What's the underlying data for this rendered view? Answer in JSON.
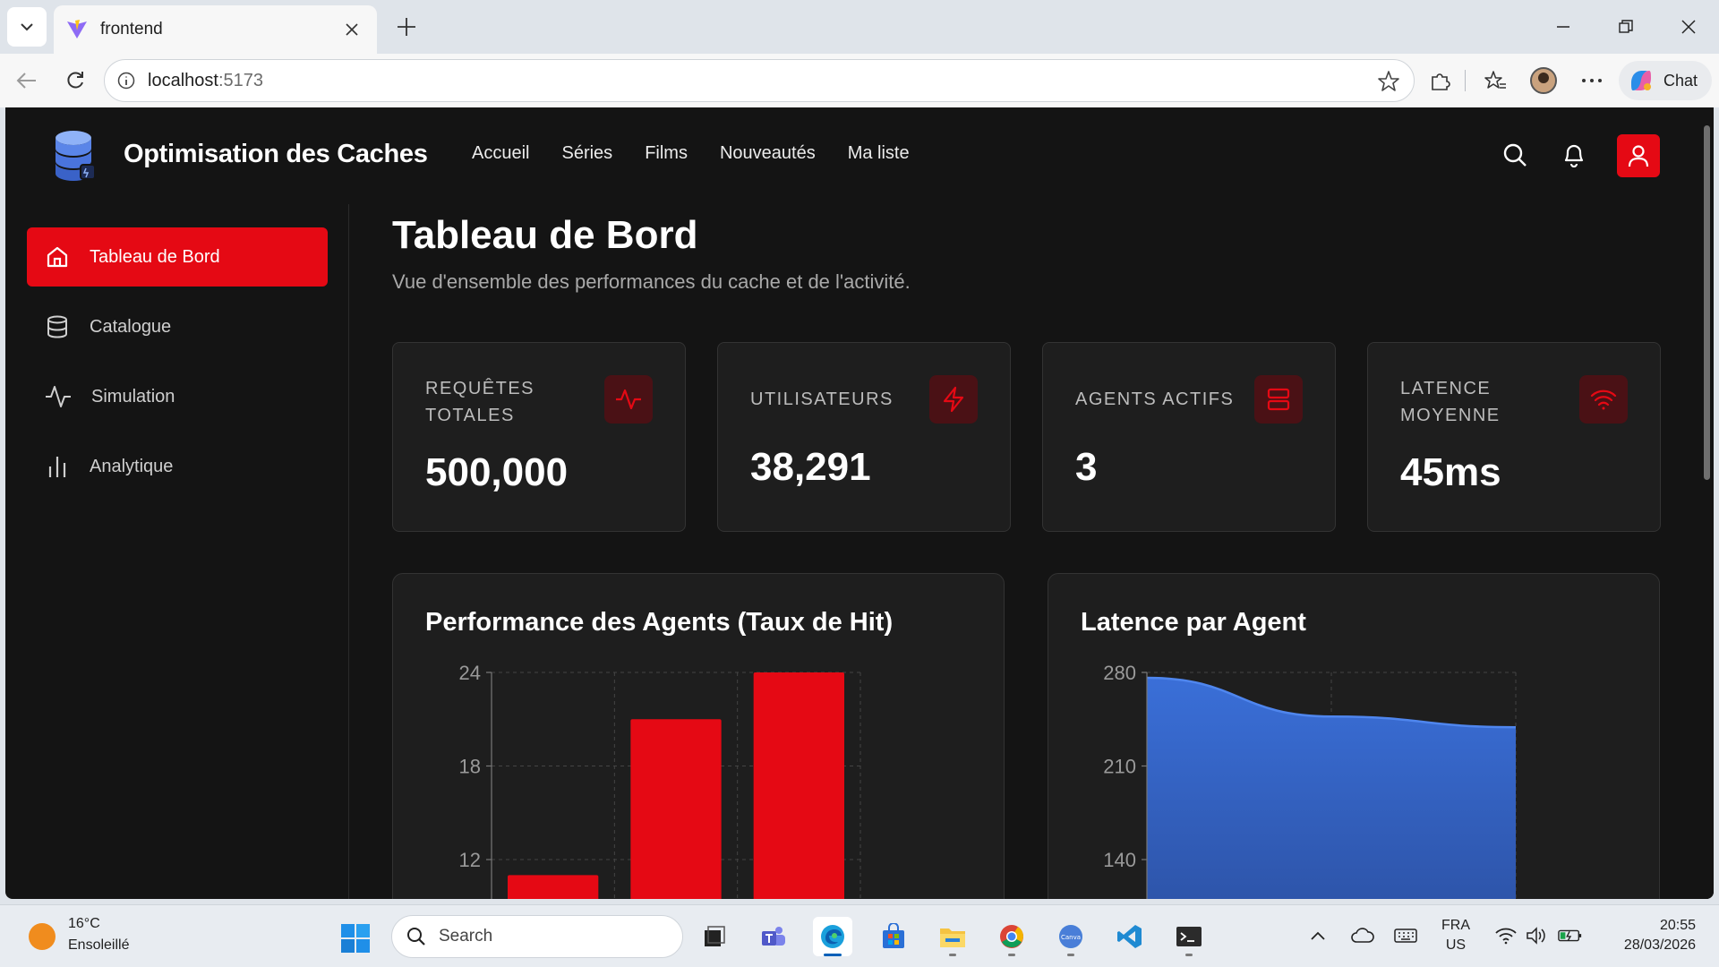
{
  "browser": {
    "tab_title": "frontend",
    "url_host": "localhost",
    "url_port": ":5173",
    "chat_label": "Chat"
  },
  "app": {
    "title": "Optimisation des Caches",
    "nav": [
      "Accueil",
      "Séries",
      "Films",
      "Nouveautés",
      "Ma liste"
    ],
    "sidebar": [
      {
        "label": "Tableau de Bord",
        "icon": "home-icon",
        "active": true
      },
      {
        "label": "Catalogue",
        "icon": "database-icon",
        "active": false
      },
      {
        "label": "Simulation",
        "icon": "activity-icon",
        "active": false
      },
      {
        "label": "Analytique",
        "icon": "bar-chart-icon",
        "active": false
      }
    ],
    "accent_color": "#e50914"
  },
  "dashboard": {
    "title": "Tableau de Bord",
    "subtitle": "Vue d'ensemble des performances du cache et de l'activité.",
    "stats": [
      {
        "label": "REQUÊTES TOTALES",
        "value": "500,000",
        "icon": "activity-icon"
      },
      {
        "label": "UTILISATEURS",
        "value": "38,291",
        "icon": "zap-icon"
      },
      {
        "label": "AGENTS ACTIFS",
        "value": "3",
        "icon": "server-icon"
      },
      {
        "label": "LATENCE MOYENNE",
        "value": "45ms",
        "icon": "wifi-icon"
      }
    ]
  },
  "chart_data": [
    {
      "type": "bar",
      "title": "Performance des Agents (Taux de Hit)",
      "categories": [
        "",
        "",
        ""
      ],
      "values": [
        11,
        21,
        24
      ],
      "yticks": [
        24,
        18,
        12
      ],
      "ylim_visible": [
        12,
        24
      ],
      "color": "#e50914",
      "grid": true
    },
    {
      "type": "area",
      "title": "Latence par Agent",
      "values": [
        276,
        247,
        239
      ],
      "yticks": [
        280,
        210,
        140
      ],
      "ylim_visible": [
        140,
        280
      ],
      "color": "#3a6fd8",
      "grid": true
    }
  ],
  "taskbar": {
    "temp": "16°C",
    "weather": "Ensoleillé",
    "search": "Search",
    "lang_1": "FRA",
    "lang_2": "US",
    "time": "20:55",
    "date": "28/03/2026"
  }
}
